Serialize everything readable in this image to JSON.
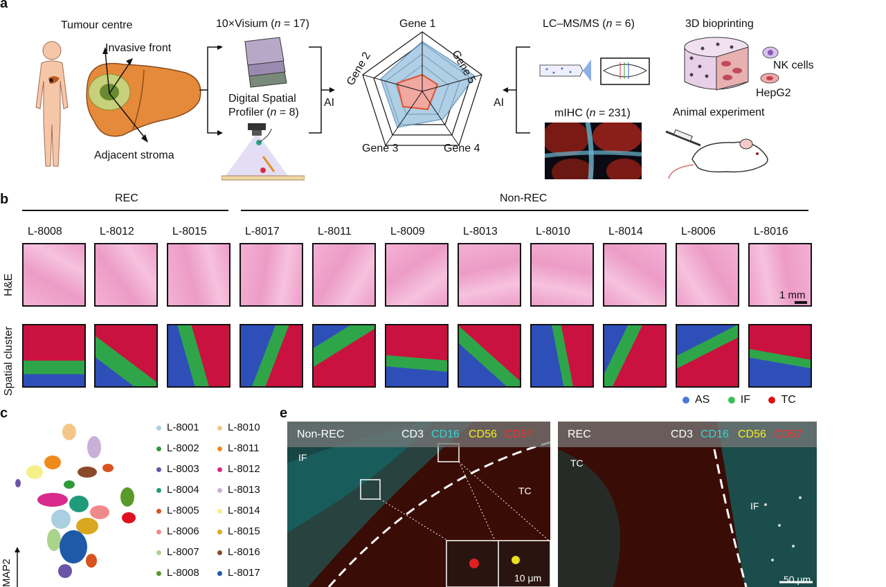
{
  "panel_labels": {
    "a": "a",
    "b": "b",
    "c": "c",
    "e": "e"
  },
  "panel_a": {
    "tumour_centre": "Tumour centre",
    "invasive_front": "Invasive front",
    "adjacent_stroma": "Adjacent stroma",
    "visium": "10×Visium (",
    "visium_n": "n",
    "visium_count": " = 17)",
    "dsp_line1": "Digital Spatial",
    "dsp_line2": "Profiler (",
    "dsp_n": "n",
    "dsp_count": " = 8)",
    "ai_left": "AI",
    "ai_right": "AI",
    "genes": [
      "Gene 1",
      "Gene 5",
      "Gene 4",
      "Gene 3",
      "Gene 2"
    ],
    "lcms": "LC–MS/MS (",
    "lcms_n": "n",
    "lcms_count": " = 6)",
    "mihc": "mIHC (",
    "mihc_n": "n",
    "mihc_count": " = 231)",
    "bioprinting": "3D bioprinting",
    "nk_cells": "NK cells",
    "hepg2": "HepG2",
    "animal": "Animal experiment"
  },
  "panel_b": {
    "group_rec": "REC",
    "group_nonrec": "Non-REC",
    "row_he": "H&E",
    "row_spatial": "Spatial cluster",
    "scale": "1 mm",
    "samples": [
      "L-8008",
      "L-8012",
      "L-8015",
      "L-8017",
      "L-8011",
      "L-8009",
      "L-8013",
      "L-8010",
      "L-8014",
      "L-8006",
      "L-8016"
    ],
    "legend": [
      {
        "label": "AS",
        "color": "#4a78d8"
      },
      {
        "label": "IF",
        "color": "#3cbf58"
      },
      {
        "label": "TC",
        "color": "#e01010"
      }
    ],
    "cluster_colors": {
      "blue": "#2f4fb8",
      "green": "#2fa54a",
      "red": "#c9123f"
    }
  },
  "panel_c": {
    "axis_label": "MAP2",
    "legend_left": [
      {
        "label": "L-8001",
        "color": "#a9cfe0"
      },
      {
        "label": "L-8002",
        "color": "#2e9a3a"
      },
      {
        "label": "L-8003",
        "color": "#6a55a8"
      },
      {
        "label": "L-8004",
        "color": "#1f9a7a"
      },
      {
        "label": "L-8005",
        "color": "#d9531e"
      },
      {
        "label": "L-8006",
        "color": "#f08a8a"
      },
      {
        "label": "L-8007",
        "color": "#a9d48a"
      },
      {
        "label": "L-8008",
        "color": "#5a9a2a"
      }
    ],
    "legend_right": [
      {
        "label": "L-8010",
        "color": "#f3c78a"
      },
      {
        "label": "L-8011",
        "color": "#f08a1a"
      },
      {
        "label": "L-8012",
        "color": "#d82a8a"
      },
      {
        "label": "L-8013",
        "color": "#c9b0d8"
      },
      {
        "label": "L-8014",
        "color": "#f5f08a"
      },
      {
        "label": "L-8015",
        "color": "#d9a81e"
      },
      {
        "label": "L-8016",
        "color": "#8a4a2a"
      },
      {
        "label": "L-8017",
        "color": "#1f5aa8"
      }
    ]
  },
  "panel_e": {
    "left": {
      "group": "Non-REC",
      "marker_cd3": "CD3",
      "marker_cd16": "CD16",
      "marker_cd56": "CD56",
      "marker_cd57": "CD57",
      "if": "IF",
      "tc": "TC",
      "inset_scale": "10 μm"
    },
    "right": {
      "group": "REC",
      "marker_cd3": "CD3",
      "marker_cd16": "CD16",
      "marker_cd56": "CD56",
      "marker_cd57": "CD57",
      "tc": "TC",
      "if": "IF",
      "scale": "50 μm"
    },
    "marker_colors": {
      "cd3": "#ffffff",
      "cd16": "#35d6d6",
      "cd56": "#f2f020",
      "cd57": "#ff2a2a"
    }
  }
}
